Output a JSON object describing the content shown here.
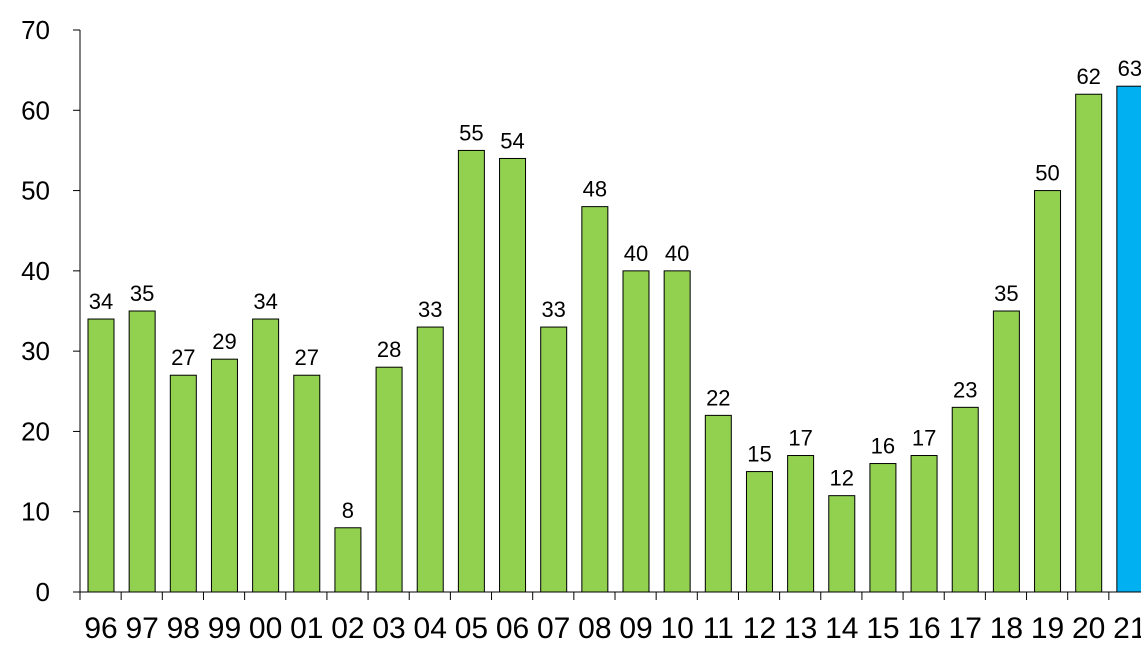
{
  "chart_data": {
    "type": "bar",
    "categories": [
      "96",
      "97",
      "98",
      "99",
      "00",
      "01",
      "02",
      "03",
      "04",
      "05",
      "06",
      "07",
      "08",
      "09",
      "10",
      "11",
      "12",
      "13",
      "14",
      "15",
      "16",
      "17",
      "18",
      "19",
      "20",
      "21"
    ],
    "values": [
      34,
      35,
      27,
      29,
      34,
      27,
      8,
      28,
      33,
      55,
      54,
      33,
      48,
      40,
      40,
      22,
      15,
      17,
      12,
      16,
      17,
      23,
      35,
      50,
      62,
      63
    ],
    "data_labels": [
      "34",
      "35",
      "27",
      "29",
      "34",
      "27",
      "8",
      "28",
      "33",
      "55",
      "54",
      "33",
      "48",
      "40",
      "40",
      "22",
      "15",
      "17",
      "12",
      "16",
      "17",
      "23",
      "35",
      "50",
      "62",
      "63"
    ],
    "bar_colors": [
      "#92d050",
      "#92d050",
      "#92d050",
      "#92d050",
      "#92d050",
      "#92d050",
      "#92d050",
      "#92d050",
      "#92d050",
      "#92d050",
      "#92d050",
      "#92d050",
      "#92d050",
      "#92d050",
      "#92d050",
      "#92d050",
      "#92d050",
      "#92d050",
      "#92d050",
      "#92d050",
      "#92d050",
      "#92d050",
      "#92d050",
      "#92d050",
      "#92d050",
      "#00b0f0"
    ],
    "ylim": [
      0,
      70
    ],
    "y_ticks": [
      0,
      10,
      20,
      30,
      40,
      50,
      60,
      70
    ],
    "title": "",
    "xlabel": "",
    "ylabel": "",
    "grid": false,
    "legend": false
  }
}
